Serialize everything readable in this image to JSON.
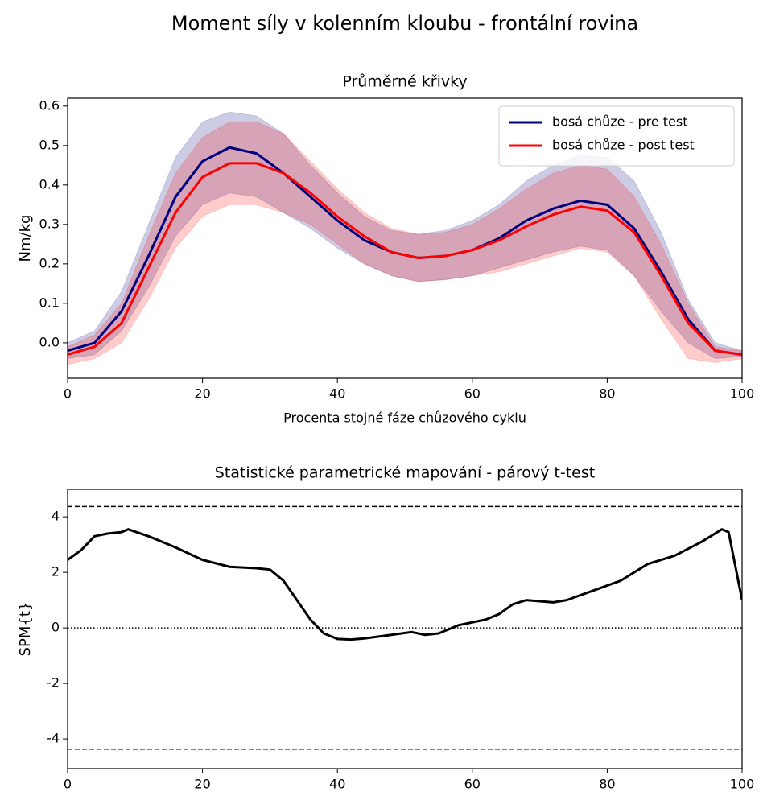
{
  "title": "Moment síly v kolenním kloubu - frontální rovina",
  "chart_data": [
    {
      "type": "line",
      "title": "Průměrné křivky",
      "xlabel": "Procenta stojné fáze chůzového cyklu",
      "ylabel": "Nm/kg",
      "x": [
        0,
        4,
        8,
        12,
        16,
        20,
        24,
        28,
        32,
        36,
        40,
        44,
        48,
        52,
        56,
        60,
        64,
        68,
        72,
        76,
        80,
        84,
        88,
        92,
        96,
        100
      ],
      "xlim": [
        0,
        100
      ],
      "xticks": [
        0,
        20,
        40,
        60,
        80,
        100
      ],
      "ylim": [
        -0.09,
        0.62
      ],
      "yticks": [
        {
          "value": 0,
          "label": "0.0"
        },
        0.1,
        0.2,
        0.3,
        0.4,
        0.5,
        0.6
      ],
      "legend": "upper right",
      "series": [
        {
          "name": "bosá chůze - pre test",
          "color": "#00007f",
          "values": [
            -0.02,
            0.0,
            0.08,
            0.22,
            0.37,
            0.46,
            0.495,
            0.48,
            0.43,
            0.37,
            0.31,
            0.26,
            0.23,
            0.215,
            0.22,
            0.235,
            0.265,
            0.31,
            0.34,
            0.36,
            0.35,
            0.29,
            0.18,
            0.06,
            -0.02,
            -0.03
          ],
          "upper": [
            0.0,
            0.03,
            0.13,
            0.3,
            0.47,
            0.56,
            0.585,
            0.575,
            0.53,
            0.45,
            0.38,
            0.32,
            0.285,
            0.275,
            0.285,
            0.31,
            0.35,
            0.41,
            0.45,
            0.475,
            0.47,
            0.41,
            0.28,
            0.11,
            0.0,
            -0.02
          ],
          "lower": [
            -0.04,
            -0.03,
            0.03,
            0.14,
            0.27,
            0.35,
            0.38,
            0.37,
            0.33,
            0.29,
            0.24,
            0.2,
            0.17,
            0.155,
            0.16,
            0.17,
            0.19,
            0.21,
            0.23,
            0.245,
            0.235,
            0.17,
            0.08,
            0.0,
            -0.04,
            -0.035
          ]
        },
        {
          "name": "bosá chůze - post test",
          "color": "#ff0000",
          "values": [
            -0.03,
            -0.01,
            0.05,
            0.19,
            0.33,
            0.42,
            0.455,
            0.455,
            0.43,
            0.38,
            0.32,
            0.27,
            0.23,
            0.215,
            0.22,
            0.235,
            0.26,
            0.295,
            0.325,
            0.345,
            0.335,
            0.28,
            0.17,
            0.05,
            -0.02,
            -0.03
          ],
          "upper": [
            -0.01,
            0.02,
            0.1,
            0.27,
            0.43,
            0.52,
            0.56,
            0.56,
            0.53,
            0.46,
            0.39,
            0.33,
            0.29,
            0.275,
            0.28,
            0.3,
            0.34,
            0.39,
            0.43,
            0.45,
            0.44,
            0.37,
            0.25,
            0.1,
            -0.01,
            -0.02
          ],
          "lower": [
            -0.055,
            -0.04,
            0.0,
            0.11,
            0.24,
            0.32,
            0.35,
            0.35,
            0.33,
            0.3,
            0.25,
            0.2,
            0.17,
            0.155,
            0.16,
            0.17,
            0.18,
            0.2,
            0.22,
            0.24,
            0.23,
            0.17,
            0.06,
            -0.04,
            -0.05,
            -0.04
          ]
        }
      ]
    },
    {
      "type": "line",
      "title": "Statistické parametrické mapování - párový t-test",
      "ylabel": "SPM{t}",
      "x": [
        0,
        2,
        4,
        6,
        8,
        9,
        12,
        16,
        20,
        24,
        28,
        30,
        32,
        34,
        36,
        38,
        40,
        42,
        44,
        48,
        51,
        53,
        55,
        58,
        62,
        64,
        66,
        68,
        72,
        74,
        78,
        82,
        86,
        90,
        94,
        96,
        97,
        98,
        100
      ],
      "xlim": [
        0,
        100
      ],
      "xticks": [
        0,
        20,
        40,
        60,
        80,
        100
      ],
      "ylim": [
        -5.07,
        4.99
      ],
      "yticks": [
        -4,
        -2,
        0,
        2,
        4
      ],
      "hlines": [
        {
          "value": 4.37,
          "style": "dashed"
        },
        {
          "value": -4.37,
          "style": "dashed"
        },
        {
          "value": 0,
          "style": "dotted"
        }
      ],
      "series": [
        {
          "color": "#000000",
          "values": [
            2.45,
            2.8,
            3.3,
            3.4,
            3.45,
            3.55,
            3.3,
            2.9,
            2.45,
            2.2,
            2.15,
            2.1,
            1.7,
            1.0,
            0.3,
            -0.2,
            -0.4,
            -0.42,
            -0.38,
            -0.25,
            -0.15,
            -0.25,
            -0.2,
            0.1,
            0.3,
            0.5,
            0.85,
            1.0,
            0.92,
            1.0,
            1.35,
            1.7,
            2.3,
            2.6,
            3.1,
            3.4,
            3.55,
            3.45,
            1.0
          ]
        }
      ]
    }
  ]
}
